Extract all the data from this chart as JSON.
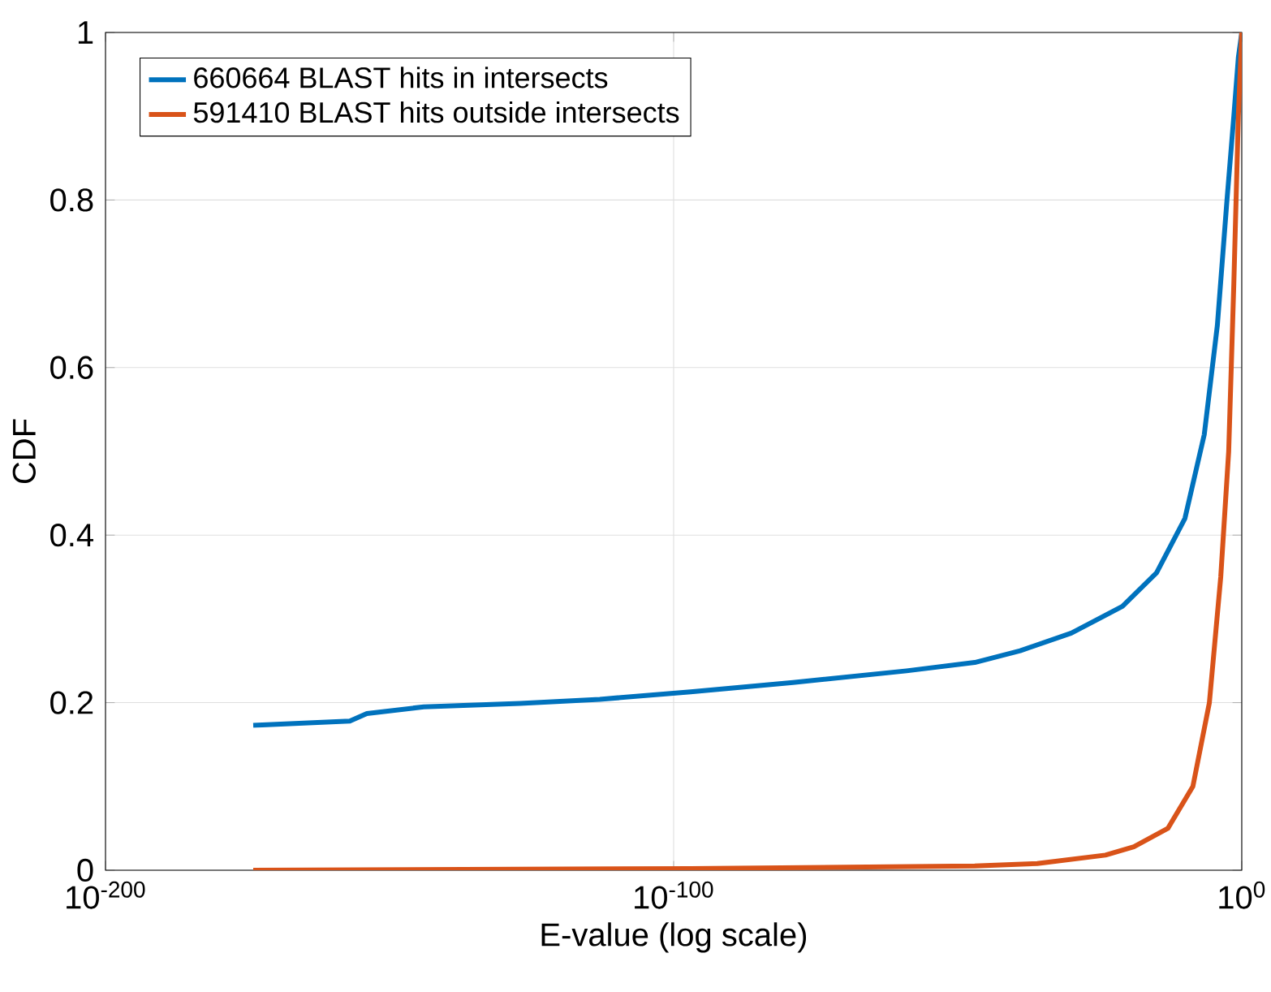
{
  "chart_data": {
    "type": "line",
    "xlabel": "E-value (log scale)",
    "ylabel": "CDF",
    "log": "x",
    "grid": true,
    "legend": "top left",
    "line_style": "solid",
    "marker": "none",
    "xlim": [
      1e-200,
      1
    ],
    "ylim": [
      0,
      1
    ],
    "xticks": [
      {
        "value": 1e-200,
        "label": "10$^{-200}$"
      },
      {
        "value": 1e-100,
        "label": "10$^{-100}$"
      },
      {
        "value": 1,
        "label": "10$^{0}$"
      }
    ],
    "yticks": [
      {
        "value": 0,
        "label": "0"
      },
      {
        "value": 0.2,
        "label": "0.2"
      },
      {
        "value": 0.4,
        "label": "0.4"
      },
      {
        "value": 0.6,
        "label": "0.6"
      },
      {
        "value": 0.8,
        "label": "0.8"
      },
      {
        "value": 1,
        "label": "1"
      }
    ],
    "series": [
      {
        "name": "660664 BLAST hits in intersects",
        "color": "#0072bd",
        "x": [
          1e-174,
          1e-157,
          1e-154,
          1e-144,
          1e-127,
          1e-113,
          1e-97,
          1e-79,
          1e-59,
          1e-47,
          1e-39,
          1e-30,
          1e-21,
          1e-15,
          1e-10,
          2.5e-07,
          5e-05,
          0.0025,
          0.04,
          0.25,
          1
        ],
        "values": [
          0.173,
          0.178,
          0.187,
          0.195,
          0.199,
          0.204,
          0.213,
          0.224,
          0.238,
          0.248,
          0.262,
          0.283,
          0.315,
          0.355,
          0.42,
          0.52,
          0.65,
          0.8,
          0.9,
          0.97,
          1.0
        ]
      },
      {
        "name": "591410 BLAST hits outside intersects",
        "color": "#d95319",
        "x": [
          1e-174,
          1e-97,
          1e-47,
          1e-36,
          1e-24,
          1e-19,
          1e-13,
          2.5e-09,
          2e-06,
          0.0002,
          0.005,
          0.04,
          0.25,
          1
        ],
        "values": [
          0,
          0.002,
          0.005,
          0.008,
          0.018,
          0.028,
          0.05,
          0.1,
          0.2,
          0.35,
          0.5,
          0.7,
          0.9,
          1.0
        ]
      }
    ]
  }
}
